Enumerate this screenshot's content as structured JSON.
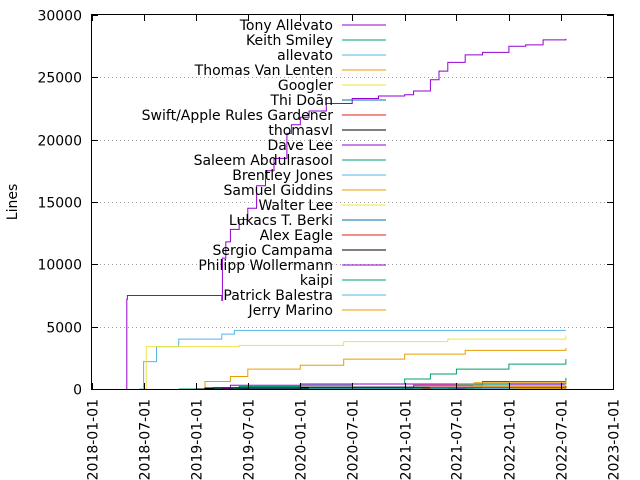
{
  "chart_data": {
    "type": "line",
    "title": "",
    "xlabel": "",
    "ylabel": "Lines",
    "ylim": [
      0,
      30000
    ],
    "xlim": [
      "2018-01-01",
      "2023-01-01"
    ],
    "y_ticks": [
      0,
      5000,
      10000,
      15000,
      20000,
      25000,
      30000
    ],
    "x_ticks": [
      "2018-01-01",
      "2018-07-01",
      "2019-01-01",
      "2019-07-01",
      "2020-01-01",
      "2020-07-01",
      "2021-01-01",
      "2021-07-01",
      "2022-01-01",
      "2022-07-01",
      "2023-01-01"
    ],
    "grid": "horizontal dotted",
    "legend_position": "top-left, inside",
    "series": [
      {
        "name": "Tony Allevato",
        "color": "#9400d3",
        "points": [
          [
            "2018-05-01",
            0
          ],
          [
            "2018-05-03",
            7200
          ],
          [
            "2018-05-05",
            7500
          ],
          [
            "2019-03-30",
            7500
          ],
          [
            "2019-04-01",
            7100
          ],
          [
            "2019-04-03",
            10500
          ],
          [
            "2019-04-15",
            11800
          ],
          [
            "2019-05-01",
            12800
          ],
          [
            "2019-06-01",
            13600
          ],
          [
            "2019-07-01",
            14500
          ],
          [
            "2019-08-01",
            16300
          ],
          [
            "2019-09-01",
            17500
          ],
          [
            "2019-10-01",
            18500
          ],
          [
            "2019-11-15",
            20500
          ],
          [
            "2019-12-01",
            21200
          ],
          [
            "2020-01-01",
            21800
          ],
          [
            "2020-02-01",
            22300
          ],
          [
            "2020-04-01",
            22900
          ],
          [
            "2020-07-01",
            23300
          ],
          [
            "2020-10-01",
            23500
          ],
          [
            "2021-01-01",
            23600
          ],
          [
            "2021-02-01",
            23900
          ],
          [
            "2021-04-01",
            24800
          ],
          [
            "2021-05-01",
            25500
          ],
          [
            "2021-06-01",
            26200
          ],
          [
            "2021-08-01",
            26800
          ],
          [
            "2021-10-01",
            27000
          ],
          [
            "2022-01-01",
            27500
          ],
          [
            "2022-03-01",
            27600
          ],
          [
            "2022-05-01",
            28000
          ],
          [
            "2022-07-20",
            28100
          ]
        ]
      },
      {
        "name": "Keith Smiley",
        "color": "#009e73",
        "points": [
          [
            "2018-11-01",
            0
          ],
          [
            "2019-06-01",
            200
          ],
          [
            "2020-01-01",
            300
          ],
          [
            "2020-07-01",
            400
          ],
          [
            "2021-01-01",
            800
          ],
          [
            "2021-04-01",
            1200
          ],
          [
            "2021-07-01",
            1600
          ],
          [
            "2022-01-01",
            2000
          ],
          [
            "2022-07-20",
            2400
          ]
        ]
      },
      {
        "name": "allevato",
        "color": "#56b4e9",
        "points": [
          [
            "2018-06-15",
            0
          ],
          [
            "2018-07-01",
            2200
          ],
          [
            "2018-08-15",
            3400
          ],
          [
            "2018-11-01",
            4000
          ],
          [
            "2019-04-01",
            4400
          ],
          [
            "2019-05-15",
            4700
          ],
          [
            "2020-01-01",
            4700
          ],
          [
            "2022-07-20",
            4700
          ]
        ]
      },
      {
        "name": "Thomas Van Lenten",
        "color": "#e69f00",
        "points": [
          [
            "2019-01-01",
            0
          ],
          [
            "2019-02-01",
            600
          ],
          [
            "2019-05-01",
            1000
          ],
          [
            "2019-07-01",
            1600
          ],
          [
            "2020-01-01",
            1900
          ],
          [
            "2020-06-01",
            2400
          ],
          [
            "2021-01-01",
            2800
          ],
          [
            "2021-08-01",
            3100
          ],
          [
            "2022-07-20",
            3300
          ]
        ]
      },
      {
        "name": "Googler",
        "color": "#f0e442",
        "points": [
          [
            "2018-07-01",
            0
          ],
          [
            "2018-07-10",
            3400
          ],
          [
            "2019-06-01",
            3500
          ],
          [
            "2020-06-01",
            3800
          ],
          [
            "2021-06-01",
            4000
          ],
          [
            "2022-07-20",
            4300
          ]
        ]
      },
      {
        "name": "Thi Doãn",
        "color": "#0072b2",
        "points": [
          [
            "2021-08-01",
            0
          ],
          [
            "2021-09-01",
            120
          ],
          [
            "2022-07-20",
            200
          ]
        ]
      },
      {
        "name": "Swift/Apple Rules Gardener",
        "color": "#e51e10",
        "points": [
          [
            "2021-01-01",
            0
          ],
          [
            "2021-02-01",
            300
          ],
          [
            "2021-10-01",
            600
          ],
          [
            "2022-07-20",
            800
          ]
        ]
      },
      {
        "name": "thomasvl",
        "color": "#000000",
        "points": [
          [
            "2019-01-01",
            0
          ],
          [
            "2019-03-01",
            100
          ],
          [
            "2020-01-01",
            150
          ],
          [
            "2022-07-20",
            250
          ]
        ]
      },
      {
        "name": "Dave Lee",
        "color": "#9400d3",
        "points": [
          [
            "2019-04-01",
            0
          ],
          [
            "2019-05-01",
            300
          ],
          [
            "2020-01-01",
            400
          ],
          [
            "2022-07-20",
            600
          ]
        ]
      },
      {
        "name": "Saleem Abdulrasool",
        "color": "#009e73",
        "points": [
          [
            "2021-06-01",
            0
          ],
          [
            "2021-07-01",
            400
          ],
          [
            "2022-01-01",
            600
          ],
          [
            "2022-07-20",
            900
          ]
        ]
      },
      {
        "name": "Brentley Jones",
        "color": "#56b4e9",
        "points": [
          [
            "2021-08-01",
            0
          ],
          [
            "2021-09-01",
            300
          ],
          [
            "2022-07-20",
            600
          ]
        ]
      },
      {
        "name": "Samuel Giddins",
        "color": "#e69f00",
        "points": [
          [
            "2021-08-01",
            0
          ],
          [
            "2021-09-01",
            500
          ],
          [
            "2022-07-20",
            700
          ]
        ]
      },
      {
        "name": "Walter Lee",
        "color": "#f0e442",
        "points": [
          [
            "2021-08-01",
            0
          ],
          [
            "2021-09-01",
            200
          ],
          [
            "2022-07-20",
            400
          ]
        ]
      },
      {
        "name": "Lukacs T. Berki",
        "color": "#0072b2",
        "points": [
          [
            "2019-06-01",
            0
          ],
          [
            "2019-07-01",
            50
          ],
          [
            "2022-07-20",
            100
          ]
        ]
      },
      {
        "name": "Alex Eagle",
        "color": "#e51e10",
        "points": [
          [
            "2021-03-01",
            0
          ],
          [
            "2021-04-01",
            150
          ],
          [
            "2022-07-20",
            250
          ]
        ]
      },
      {
        "name": "Sergio Campama",
        "color": "#000000",
        "points": [
          [
            "2019-01-01",
            0
          ],
          [
            "2019-02-01",
            80
          ],
          [
            "2022-07-20",
            120
          ]
        ]
      },
      {
        "name": "Philipp Wollermann",
        "color": "#9400d3",
        "points": [
          [
            "2021-07-01",
            0
          ],
          [
            "2021-08-01",
            100
          ],
          [
            "2022-07-20",
            150
          ]
        ]
      },
      {
        "name": "kaipi",
        "color": "#009e73",
        "points": [
          [
            "2020-01-01",
            0
          ],
          [
            "2020-02-01",
            80
          ],
          [
            "2022-07-20",
            120
          ]
        ]
      },
      {
        "name": "Patrick Balestra",
        "color": "#56b4e9",
        "points": [
          [
            "2021-09-01",
            0
          ],
          [
            "2021-10-01",
            60
          ],
          [
            "2022-07-20",
            100
          ]
        ]
      },
      {
        "name": "Jerry Marino",
        "color": "#e69f00",
        "points": [
          [
            "2022-01-01",
            0
          ],
          [
            "2022-02-01",
            50
          ],
          [
            "2022-07-20",
            80
          ]
        ]
      }
    ]
  }
}
